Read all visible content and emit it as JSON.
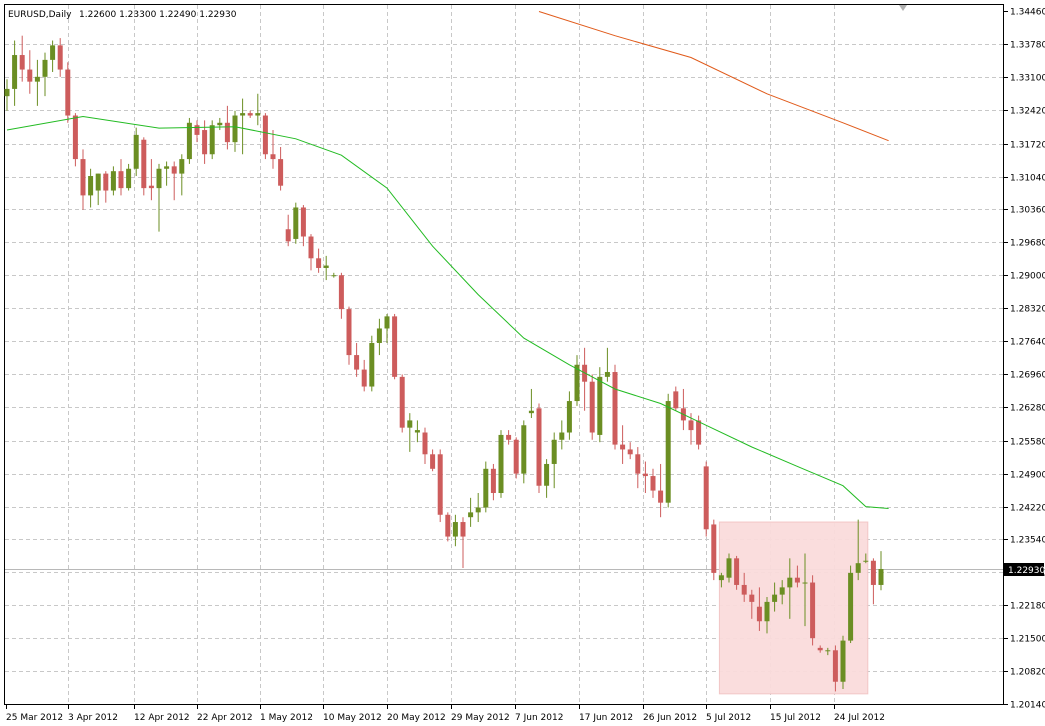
{
  "chart_data": {
    "type": "candlestick",
    "symbol_label": "EURUSD,Daily",
    "ohlc_label": "1.22600 1.23300 1.22490 1.22930",
    "current_price_label": "1.22930",
    "price_ticks": [
      "1.34460",
      "1.33780",
      "1.33100",
      "1.32420",
      "1.31720",
      "1.31040",
      "1.30360",
      "1.29680",
      "1.29000",
      "1.28320",
      "1.27640",
      "1.26960",
      "1.26280",
      "1.25580",
      "1.24900",
      "1.24220",
      "1.23540",
      "1.22860",
      "1.22180",
      "1.21500",
      "1.20820",
      "1.20140"
    ],
    "date_ticks": [
      "25 Mar 2012",
      "3 Apr 2012",
      "12 Apr 2012",
      "22 Apr 2012",
      "1 May 2012",
      "10 May 2012",
      "20 May 2012",
      "29 May 2012",
      "7 Jun 2012",
      "17 Jun 2012",
      "26 Jun 2012",
      "5 Jul 2012",
      "15 Jul 2012",
      "24 Jul 2012"
    ],
    "ylim": [
      1.2014,
      1.3446
    ],
    "grid": true,
    "candles": [
      {
        "o": 1.327,
        "h": 1.3305,
        "l": 1.324,
        "c": 1.3285
      },
      {
        "o": 1.3285,
        "h": 1.3385,
        "l": 1.325,
        "c": 1.3355
      },
      {
        "o": 1.3355,
        "h": 1.3395,
        "l": 1.33,
        "c": 1.3325
      },
      {
        "o": 1.3325,
        "h": 1.3365,
        "l": 1.3275,
        "c": 1.33
      },
      {
        "o": 1.33,
        "h": 1.3345,
        "l": 1.325,
        "c": 1.331
      },
      {
        "o": 1.331,
        "h": 1.336,
        "l": 1.327,
        "c": 1.3345
      },
      {
        "o": 1.3345,
        "h": 1.3385,
        "l": 1.332,
        "c": 1.3375
      },
      {
        "o": 1.3375,
        "h": 1.339,
        "l": 1.331,
        "c": 1.3325
      },
      {
        "o": 1.3325,
        "h": 1.334,
        "l": 1.3215,
        "c": 1.323
      },
      {
        "o": 1.323,
        "h": 1.3235,
        "l": 1.3125,
        "c": 1.314
      },
      {
        "o": 1.314,
        "h": 1.316,
        "l": 1.3035,
        "c": 1.3065
      },
      {
        "o": 1.3065,
        "h": 1.312,
        "l": 1.304,
        "c": 1.3105
      },
      {
        "o": 1.3075,
        "h": 1.311,
        "l": 1.3045,
        "c": 1.311
      },
      {
        "o": 1.311,
        "h": 1.3115,
        "l": 1.305,
        "c": 1.3075
      },
      {
        "o": 1.3075,
        "h": 1.3125,
        "l": 1.3065,
        "c": 1.3115
      },
      {
        "o": 1.3115,
        "h": 1.314,
        "l": 1.3065,
        "c": 1.308
      },
      {
        "o": 1.308,
        "h": 1.313,
        "l": 1.3075,
        "c": 1.312
      },
      {
        "o": 1.312,
        "h": 1.3205,
        "l": 1.3105,
        "c": 1.319
      },
      {
        "o": 1.318,
        "h": 1.3185,
        "l": 1.3065,
        "c": 1.308
      },
      {
        "o": 1.3085,
        "h": 1.314,
        "l": 1.3055,
        "c": 1.308
      },
      {
        "o": 1.308,
        "h": 1.313,
        "l": 1.299,
        "c": 1.312
      },
      {
        "o": 1.312,
        "h": 1.3135,
        "l": 1.3085,
        "c": 1.3125
      },
      {
        "o": 1.3125,
        "h": 1.3135,
        "l": 1.3055,
        "c": 1.311
      },
      {
        "o": 1.311,
        "h": 1.315,
        "l": 1.3065,
        "c": 1.314
      },
      {
        "o": 1.314,
        "h": 1.3225,
        "l": 1.313,
        "c": 1.3215
      },
      {
        "o": 1.321,
        "h": 1.322,
        "l": 1.3175,
        "c": 1.319
      },
      {
        "o": 1.32,
        "h": 1.322,
        "l": 1.313,
        "c": 1.315
      },
      {
        "o": 1.315,
        "h": 1.322,
        "l": 1.314,
        "c": 1.321
      },
      {
        "o": 1.321,
        "h": 1.3225,
        "l": 1.32,
        "c": 1.3215
      },
      {
        "o": 1.3215,
        "h": 1.325,
        "l": 1.316,
        "c": 1.3175
      },
      {
        "o": 1.3175,
        "h": 1.324,
        "l": 1.3155,
        "c": 1.323
      },
      {
        "o": 1.323,
        "h": 1.3265,
        "l": 1.315,
        "c": 1.3235
      },
      {
        "o": 1.3235,
        "h": 1.324,
        "l": 1.3225,
        "c": 1.323
      },
      {
        "o": 1.323,
        "h": 1.3275,
        "l": 1.321,
        "c": 1.3235
      },
      {
        "o": 1.323,
        "h": 1.3235,
        "l": 1.314,
        "c": 1.315
      },
      {
        "o": 1.315,
        "h": 1.32,
        "l": 1.312,
        "c": 1.314
      },
      {
        "o": 1.314,
        "h": 1.3165,
        "l": 1.3075,
        "c": 1.3085
      },
      {
        "o": 1.2995,
        "h": 1.3025,
        "l": 1.296,
        "c": 1.297
      },
      {
        "o": 1.2975,
        "h": 1.305,
        "l": 1.2965,
        "c": 1.304
      },
      {
        "o": 1.304,
        "h": 1.3045,
        "l": 1.296,
        "c": 1.298
      },
      {
        "o": 1.298,
        "h": 1.2985,
        "l": 1.291,
        "c": 1.2935
      },
      {
        "o": 1.2935,
        "h": 1.2955,
        "l": 1.2905,
        "c": 1.2915
      },
      {
        "o": 1.2915,
        "h": 1.294,
        "l": 1.289,
        "c": 1.292
      },
      {
        "o": 1.29,
        "h": 1.2905,
        "l": 1.2895,
        "c": 1.29
      },
      {
        "o": 1.29,
        "h": 1.2905,
        "l": 1.281,
        "c": 1.283
      },
      {
        "o": 1.283,
        "h": 1.2835,
        "l": 1.2715,
        "c": 1.2735
      },
      {
        "o": 1.2735,
        "h": 1.276,
        "l": 1.269,
        "c": 1.2705
      },
      {
        "o": 1.2705,
        "h": 1.2725,
        "l": 1.266,
        "c": 1.267
      },
      {
        "o": 1.267,
        "h": 1.2775,
        "l": 1.266,
        "c": 1.276
      },
      {
        "o": 1.276,
        "h": 1.281,
        "l": 1.2735,
        "c": 1.279
      },
      {
        "o": 1.279,
        "h": 1.282,
        "l": 1.276,
        "c": 1.2815
      },
      {
        "o": 1.2815,
        "h": 1.282,
        "l": 1.2685,
        "c": 1.269
      },
      {
        "o": 1.269,
        "h": 1.2695,
        "l": 1.2575,
        "c": 1.2585
      },
      {
        "o": 1.2585,
        "h": 1.2615,
        "l": 1.2535,
        "c": 1.26
      },
      {
        "o": 1.2575,
        "h": 1.26,
        "l": 1.2555,
        "c": 1.258
      },
      {
        "o": 1.2575,
        "h": 1.2585,
        "l": 1.251,
        "c": 1.253
      },
      {
        "o": 1.253,
        "h": 1.254,
        "l": 1.2495,
        "c": 1.25
      },
      {
        "o": 1.253,
        "h": 1.254,
        "l": 1.239,
        "c": 1.2405
      },
      {
        "o": 1.2405,
        "h": 1.241,
        "l": 1.235,
        "c": 1.236
      },
      {
        "o": 1.236,
        "h": 1.2405,
        "l": 1.234,
        "c": 1.239
      },
      {
        "o": 1.239,
        "h": 1.24,
        "l": 1.2295,
        "c": 1.236
      },
      {
        "o": 1.24,
        "h": 1.244,
        "l": 1.238,
        "c": 1.241
      },
      {
        "o": 1.241,
        "h": 1.245,
        "l": 1.239,
        "c": 1.242
      },
      {
        "o": 1.242,
        "h": 1.2515,
        "l": 1.241,
        "c": 1.25
      },
      {
        "o": 1.25,
        "h": 1.251,
        "l": 1.2435,
        "c": 1.245
      },
      {
        "o": 1.245,
        "h": 1.258,
        "l": 1.244,
        "c": 1.257
      },
      {
        "o": 1.257,
        "h": 1.258,
        "l": 1.255,
        "c": 1.256
      },
      {
        "o": 1.256,
        "h": 1.2565,
        "l": 1.248,
        "c": 1.249
      },
      {
        "o": 1.249,
        "h": 1.26,
        "l": 1.247,
        "c": 1.259
      },
      {
        "o": 1.2615,
        "h": 1.2665,
        "l": 1.2605,
        "c": 1.262
      },
      {
        "o": 1.2625,
        "h": 1.2635,
        "l": 1.245,
        "c": 1.2465
      },
      {
        "o": 1.2465,
        "h": 1.252,
        "l": 1.244,
        "c": 1.251
      },
      {
        "o": 1.251,
        "h": 1.2575,
        "l": 1.246,
        "c": 1.256
      },
      {
        "o": 1.256,
        "h": 1.26,
        "l": 1.254,
        "c": 1.2575
      },
      {
        "o": 1.2575,
        "h": 1.266,
        "l": 1.256,
        "c": 1.264
      },
      {
        "o": 1.264,
        "h": 1.2735,
        "l": 1.263,
        "c": 1.2715
      },
      {
        "o": 1.2715,
        "h": 1.275,
        "l": 1.262,
        "c": 1.268
      },
      {
        "o": 1.268,
        "h": 1.2695,
        "l": 1.256,
        "c": 1.2575
      },
      {
        "o": 1.257,
        "h": 1.271,
        "l": 1.2555,
        "c": 1.269
      },
      {
        "o": 1.269,
        "h": 1.275,
        "l": 1.268,
        "c": 1.27
      },
      {
        "o": 1.27,
        "h": 1.2715,
        "l": 1.254,
        "c": 1.255
      },
      {
        "o": 1.255,
        "h": 1.259,
        "l": 1.251,
        "c": 1.254
      },
      {
        "o": 1.254,
        "h": 1.2555,
        "l": 1.252,
        "c": 1.253
      },
      {
        "o": 1.253,
        "h": 1.2545,
        "l": 1.246,
        "c": 1.249
      },
      {
        "o": 1.249,
        "h": 1.2515,
        "l": 1.245,
        "c": 1.2485
      },
      {
        "o": 1.2485,
        "h": 1.25,
        "l": 1.244,
        "c": 1.2455
      },
      {
        "o": 1.2455,
        "h": 1.251,
        "l": 1.24,
        "c": 1.243
      },
      {
        "o": 1.243,
        "h": 1.2655,
        "l": 1.242,
        "c": 1.264
      },
      {
        "o": 1.266,
        "h": 1.267,
        "l": 1.262,
        "c": 1.2625
      },
      {
        "o": 1.2625,
        "h": 1.2665,
        "l": 1.258,
        "c": 1.26
      },
      {
        "o": 1.26,
        "h": 1.2615,
        "l": 1.255,
        "c": 1.258
      },
      {
        "o": 1.26,
        "h": 1.261,
        "l": 1.254,
        "c": 1.255
      },
      {
        "o": 1.2505,
        "h": 1.2515,
        "l": 1.236,
        "c": 1.2375
      },
      {
        "o": 1.2385,
        "h": 1.2395,
        "l": 1.227,
        "c": 1.2285
      },
      {
        "o": 1.227,
        "h": 1.2285,
        "l": 1.2255,
        "c": 1.228
      },
      {
        "o": 1.2275,
        "h": 1.2325,
        "l": 1.2265,
        "c": 1.2315
      },
      {
        "o": 1.2315,
        "h": 1.232,
        "l": 1.225,
        "c": 1.226
      },
      {
        "o": 1.226,
        "h": 1.2285,
        "l": 1.2225,
        "c": 1.224
      },
      {
        "o": 1.224,
        "h": 1.225,
        "l": 1.219,
        "c": 1.2225
      },
      {
        "o": 1.2215,
        "h": 1.2255,
        "l": 1.2165,
        "c": 1.2185
      },
      {
        "o": 1.2185,
        "h": 1.2235,
        "l": 1.216,
        "c": 1.2225
      },
      {
        "o": 1.2225,
        "h": 1.2265,
        "l": 1.2205,
        "c": 1.224
      },
      {
        "o": 1.224,
        "h": 1.227,
        "l": 1.222,
        "c": 1.2255
      },
      {
        "o": 1.2255,
        "h": 1.2315,
        "l": 1.219,
        "c": 1.2275
      },
      {
        "o": 1.2275,
        "h": 1.23,
        "l": 1.2255,
        "c": 1.2265
      },
      {
        "o": 1.2265,
        "h": 1.2325,
        "l": 1.2175,
        "c": 1.2265
      },
      {
        "o": 1.2265,
        "h": 1.228,
        "l": 1.2135,
        "c": 1.215
      },
      {
        "o": 1.213,
        "h": 1.2135,
        "l": 1.212,
        "c": 1.2125
      },
      {
        "o": 1.2125,
        "h": 1.213,
        "l": 1.2115,
        "c": 1.2125
      },
      {
        "o": 1.2125,
        "h": 1.2135,
        "l": 1.204,
        "c": 1.206
      },
      {
        "o": 1.206,
        "h": 1.2155,
        "l": 1.2045,
        "c": 1.2145
      },
      {
        "o": 1.2145,
        "h": 1.23,
        "l": 1.214,
        "c": 1.2285
      },
      {
        "o": 1.2285,
        "h": 1.2395,
        "l": 1.227,
        "c": 1.2305
      },
      {
        "o": 1.231,
        "h": 1.2325,
        "l": 1.2305,
        "c": 1.231
      },
      {
        "o": 1.231,
        "h": 1.2315,
        "l": 1.222,
        "c": 1.226
      },
      {
        "o": 1.226,
        "h": 1.233,
        "l": 1.2249,
        "c": 1.2293
      }
    ],
    "ma_fast": [
      [
        0,
        1.32
      ],
      [
        10,
        1.3228
      ],
      [
        20,
        1.3204
      ],
      [
        30,
        1.3207
      ],
      [
        38,
        1.3182
      ],
      [
        44,
        1.3148
      ],
      [
        50,
        1.308
      ],
      [
        56,
        1.296
      ],
      [
        62,
        1.286
      ],
      [
        68,
        1.277
      ],
      [
        74,
        1.2715
      ],
      [
        80,
        1.2665
      ],
      [
        86,
        1.2635
      ],
      [
        92,
        1.259
      ],
      [
        98,
        1.2545
      ],
      [
        104,
        1.2505
      ],
      [
        110,
        1.2465
      ],
      [
        113,
        1.2422
      ],
      [
        116,
        1.2418
      ]
    ],
    "ma_slow": [
      [
        70,
        1.3445
      ],
      [
        80,
        1.3395
      ],
      [
        90,
        1.335
      ],
      [
        100,
        1.3275
      ],
      [
        110,
        1.3215
      ],
      [
        116,
        1.3178
      ]
    ],
    "highlight_range": {
      "from_index": 94,
      "to_index": 113,
      "high": 1.239,
      "low": 1.2035
    }
  }
}
